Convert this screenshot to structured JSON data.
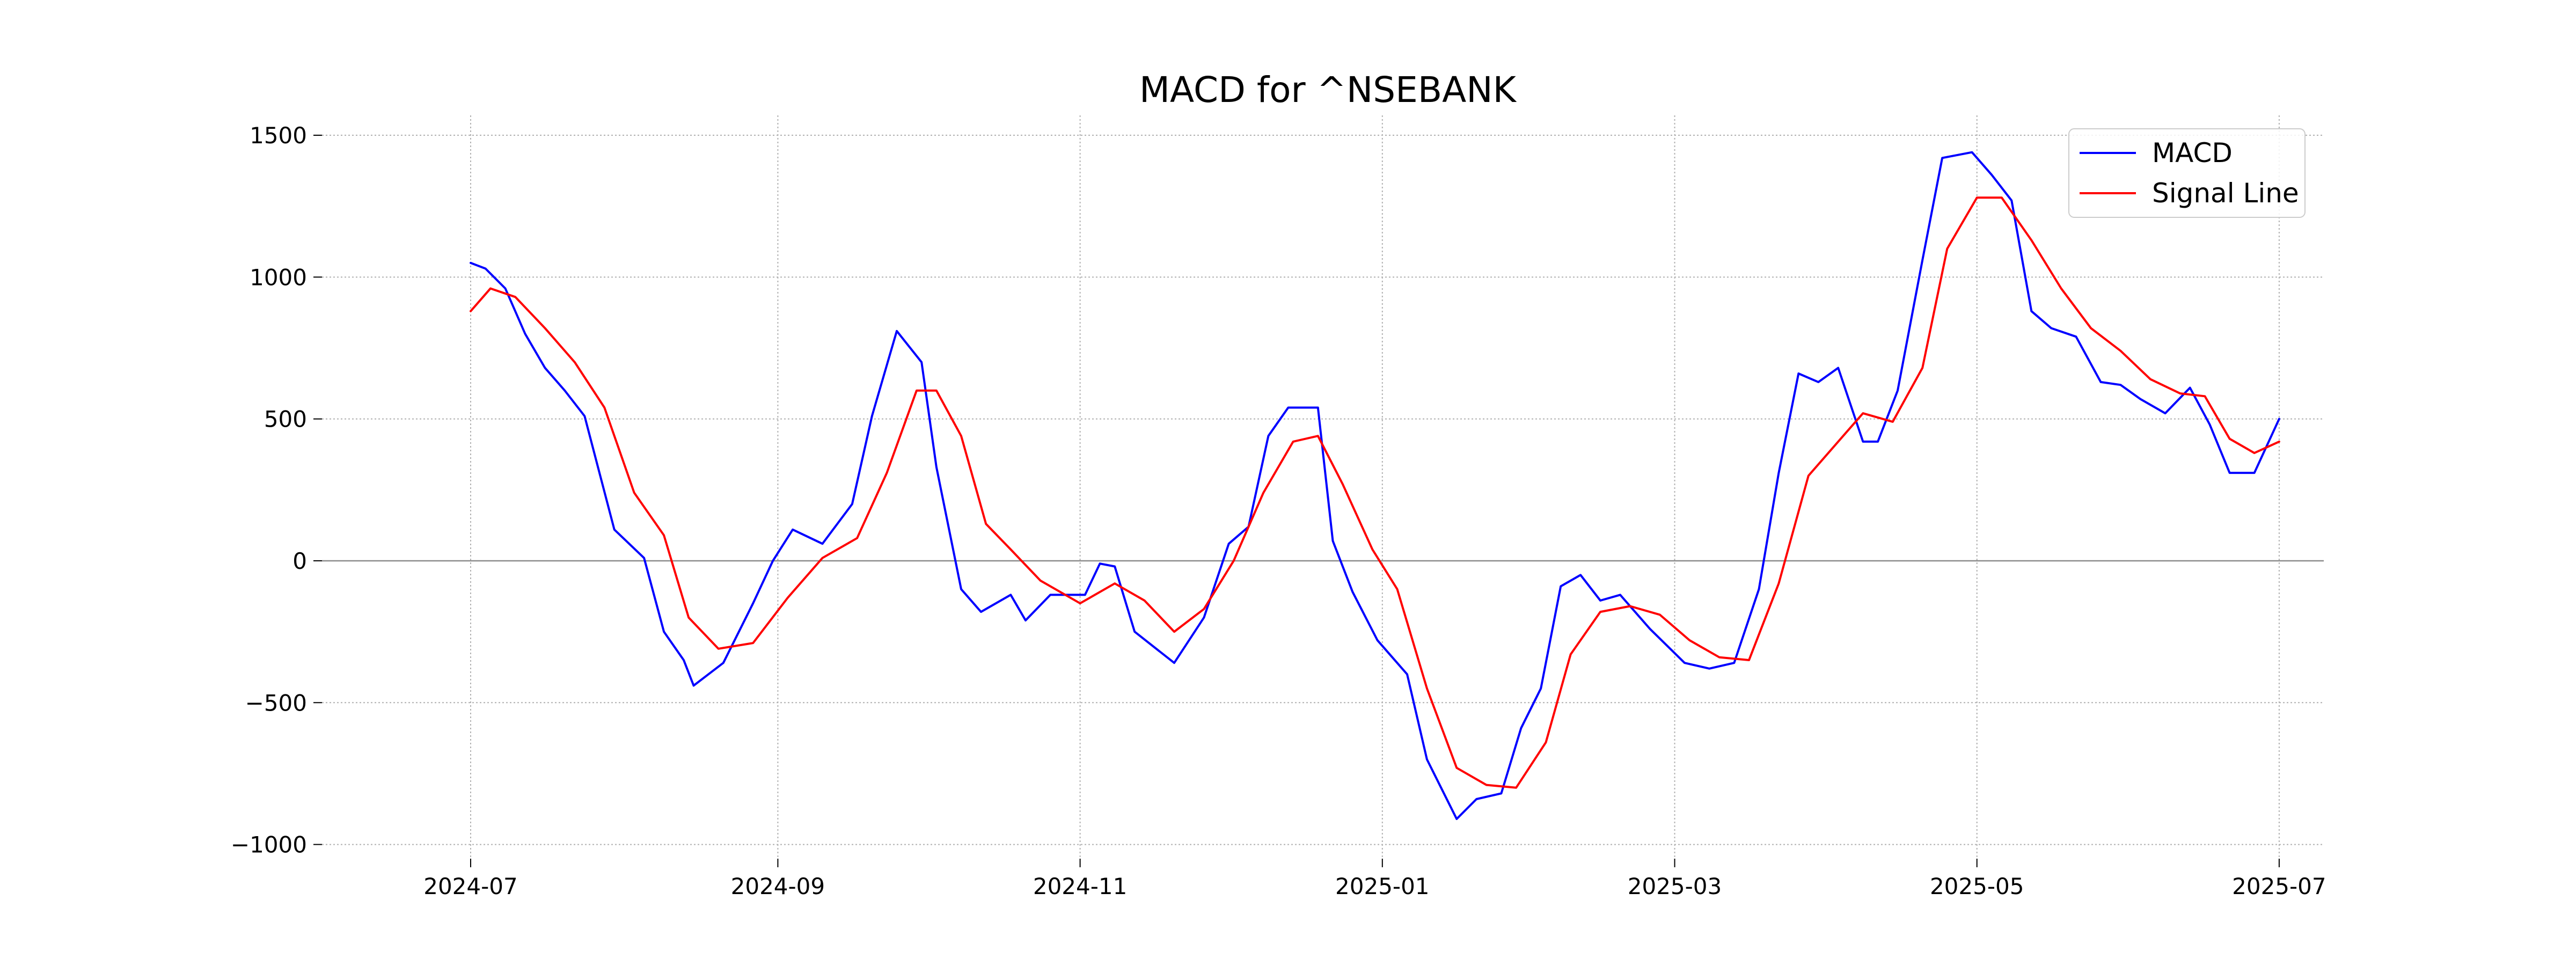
{
  "chart_data": {
    "type": "line",
    "title": "MACD for ^NSEBANK",
    "xlabel": "",
    "ylabel": "",
    "xlim": [
      "2024-06-01",
      "2025-07-10"
    ],
    "ylim": [
      -1050,
      1570
    ],
    "grid": true,
    "grid_style": "dotted",
    "legend_position": "top-right",
    "zero_line": true,
    "x_ticks": [
      "2024-07",
      "2024-09",
      "2024-11",
      "2025-01",
      "2025-03",
      "2025-05",
      "2025-07"
    ],
    "x_tick_dates": [
      "2024-07-01",
      "2024-09-01",
      "2024-11-01",
      "2025-01-01",
      "2025-03-01",
      "2025-05-01",
      "2025-07-01"
    ],
    "y_ticks": [
      1500,
      1000,
      500,
      0,
      -500,
      -1000
    ],
    "y_tick_labels": [
      "1500",
      "1000",
      "500",
      "0",
      "−500",
      "−1000"
    ],
    "series": [
      {
        "name": "MACD",
        "color": "#0000ff",
        "points": [
          [
            "2024-07-01",
            1050
          ],
          [
            "2024-07-04",
            1030
          ],
          [
            "2024-07-08",
            960
          ],
          [
            "2024-07-12",
            800
          ],
          [
            "2024-07-16",
            680
          ],
          [
            "2024-07-20",
            600
          ],
          [
            "2024-07-24",
            510
          ],
          [
            "2024-07-30",
            110
          ],
          [
            "2024-08-05",
            10
          ],
          [
            "2024-08-09",
            -250
          ],
          [
            "2024-08-13",
            -350
          ],
          [
            "2024-08-15",
            -440
          ],
          [
            "2024-08-21",
            -360
          ],
          [
            "2024-08-27",
            -150
          ],
          [
            "2024-08-31",
            0
          ],
          [
            "2024-09-04",
            110
          ],
          [
            "2024-09-10",
            60
          ],
          [
            "2024-09-16",
            200
          ],
          [
            "2024-09-20",
            510
          ],
          [
            "2024-09-25",
            810
          ],
          [
            "2024-09-30",
            700
          ],
          [
            "2024-10-03",
            330
          ],
          [
            "2024-10-08",
            -100
          ],
          [
            "2024-10-12",
            -180
          ],
          [
            "2024-10-18",
            -120
          ],
          [
            "2024-10-21",
            -210
          ],
          [
            "2024-10-26",
            -120
          ],
          [
            "2024-11-02",
            -120
          ],
          [
            "2024-11-05",
            -10
          ],
          [
            "2024-11-08",
            -20
          ],
          [
            "2024-11-12",
            -250
          ],
          [
            "2024-11-20",
            -360
          ],
          [
            "2024-11-26",
            -200
          ],
          [
            "2024-12-01",
            60
          ],
          [
            "2024-12-05",
            120
          ],
          [
            "2024-12-09",
            440
          ],
          [
            "2024-12-13",
            540
          ],
          [
            "2024-12-19",
            540
          ],
          [
            "2024-12-22",
            70
          ],
          [
            "2024-12-26",
            -110
          ],
          [
            "2024-12-31",
            -280
          ],
          [
            "2025-01-06",
            -400
          ],
          [
            "2025-01-10",
            -700
          ],
          [
            "2025-01-16",
            -910
          ],
          [
            "2025-01-20",
            -840
          ],
          [
            "2025-01-25",
            -820
          ],
          [
            "2025-01-29",
            -590
          ],
          [
            "2025-02-02",
            -450
          ],
          [
            "2025-02-06",
            -90
          ],
          [
            "2025-02-10",
            -50
          ],
          [
            "2025-02-14",
            -140
          ],
          [
            "2025-02-18",
            -120
          ],
          [
            "2025-02-24",
            -240
          ],
          [
            "2025-03-03",
            -360
          ],
          [
            "2025-03-08",
            -380
          ],
          [
            "2025-03-13",
            -360
          ],
          [
            "2025-03-18",
            -100
          ],
          [
            "2025-03-22",
            310
          ],
          [
            "2025-03-26",
            660
          ],
          [
            "2025-03-30",
            630
          ],
          [
            "2025-04-03",
            680
          ],
          [
            "2025-04-08",
            420
          ],
          [
            "2025-04-11",
            420
          ],
          [
            "2025-04-15",
            600
          ],
          [
            "2025-04-20",
            1060
          ],
          [
            "2025-04-24",
            1420
          ],
          [
            "2025-04-30",
            1440
          ],
          [
            "2025-05-04",
            1360
          ],
          [
            "2025-05-08",
            1270
          ],
          [
            "2025-05-12",
            880
          ],
          [
            "2025-05-16",
            820
          ],
          [
            "2025-05-21",
            790
          ],
          [
            "2025-05-26",
            630
          ],
          [
            "2025-05-30",
            620
          ],
          [
            "2025-06-03",
            570
          ],
          [
            "2025-06-08",
            520
          ],
          [
            "2025-06-13",
            610
          ],
          [
            "2025-06-17",
            480
          ],
          [
            "2025-06-21",
            310
          ],
          [
            "2025-06-26",
            310
          ],
          [
            "2025-07-01",
            500
          ]
        ]
      },
      {
        "name": "Signal Line",
        "color": "#ff0000",
        "points": [
          [
            "2024-07-01",
            880
          ],
          [
            "2024-07-05",
            960
          ],
          [
            "2024-07-10",
            930
          ],
          [
            "2024-07-16",
            820
          ],
          [
            "2024-07-22",
            700
          ],
          [
            "2024-07-28",
            540
          ],
          [
            "2024-08-03",
            240
          ],
          [
            "2024-08-09",
            90
          ],
          [
            "2024-08-14",
            -200
          ],
          [
            "2024-08-20",
            -310
          ],
          [
            "2024-08-27",
            -290
          ],
          [
            "2024-09-03",
            -130
          ],
          [
            "2024-09-10",
            10
          ],
          [
            "2024-09-17",
            80
          ],
          [
            "2024-09-23",
            310
          ],
          [
            "2024-09-29",
            600
          ],
          [
            "2024-10-03",
            600
          ],
          [
            "2024-10-08",
            440
          ],
          [
            "2024-10-13",
            130
          ],
          [
            "2024-10-18",
            40
          ],
          [
            "2024-10-24",
            -70
          ],
          [
            "2024-11-01",
            -150
          ],
          [
            "2024-11-08",
            -80
          ],
          [
            "2024-11-14",
            -140
          ],
          [
            "2024-11-20",
            -250
          ],
          [
            "2024-11-26",
            -170
          ],
          [
            "2024-12-02",
            0
          ],
          [
            "2024-12-08",
            240
          ],
          [
            "2024-12-14",
            420
          ],
          [
            "2024-12-19",
            440
          ],
          [
            "2024-12-24",
            270
          ],
          [
            "2024-12-30",
            40
          ],
          [
            "2025-01-04",
            -100
          ],
          [
            "2025-01-10",
            -450
          ],
          [
            "2025-01-16",
            -730
          ],
          [
            "2025-01-22",
            -790
          ],
          [
            "2025-01-28",
            -800
          ],
          [
            "2025-02-03",
            -640
          ],
          [
            "2025-02-08",
            -330
          ],
          [
            "2025-02-14",
            -180
          ],
          [
            "2025-02-20",
            -160
          ],
          [
            "2025-02-26",
            -190
          ],
          [
            "2025-03-04",
            -280
          ],
          [
            "2025-03-10",
            -340
          ],
          [
            "2025-03-16",
            -350
          ],
          [
            "2025-03-22",
            -80
          ],
          [
            "2025-03-28",
            300
          ],
          [
            "2025-04-03",
            420
          ],
          [
            "2025-04-08",
            520
          ],
          [
            "2025-04-14",
            490
          ],
          [
            "2025-04-20",
            680
          ],
          [
            "2025-04-25",
            1100
          ],
          [
            "2025-05-01",
            1280
          ],
          [
            "2025-05-06",
            1280
          ],
          [
            "2025-05-12",
            1130
          ],
          [
            "2025-05-18",
            960
          ],
          [
            "2025-05-24",
            820
          ],
          [
            "2025-05-30",
            740
          ],
          [
            "2025-06-05",
            640
          ],
          [
            "2025-06-11",
            590
          ],
          [
            "2025-06-16",
            580
          ],
          [
            "2025-06-21",
            430
          ],
          [
            "2025-06-26",
            380
          ],
          [
            "2025-07-01",
            420
          ]
        ]
      }
    ]
  }
}
